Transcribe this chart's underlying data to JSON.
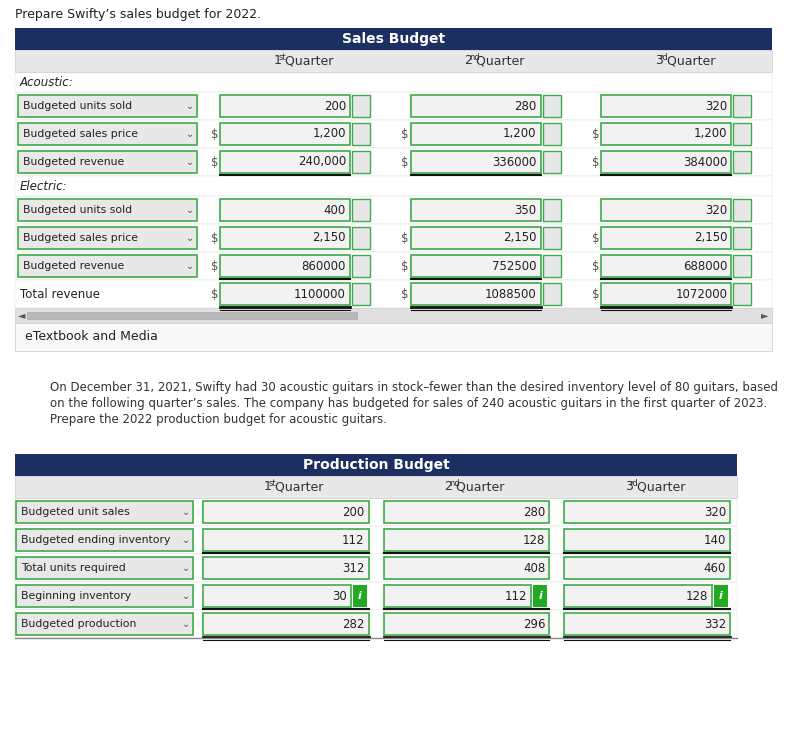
{
  "title_text": "Prepare Swifty’s sales budget for 2022.",
  "sales_budget_title": "Sales Budget",
  "production_budget_title": "Production Budget",
  "header_bg": "#1b3060",
  "header_fg": "#ffffff",
  "subheader_bg": "#e8e8e8",
  "input_bg": "#f2f2f2",
  "input_border": "#3daa4c",
  "label_bg": "#e8e8e8",
  "label_border": "#3daa4c",
  "dark_line_color": "#111111",
  "info_btn_color": "#22aa22",
  "sales_rows": [
    {
      "label": "Acoustic:",
      "type": "section"
    },
    {
      "label": "Budgeted units sold",
      "type": "input",
      "has_dollar": false,
      "values": [
        "200",
        "280",
        "320"
      ],
      "underline": false
    },
    {
      "label": "Budgeted sales price",
      "type": "input",
      "has_dollar": true,
      "values": [
        "1,200",
        "1,200",
        "1,200"
      ],
      "underline": false
    },
    {
      "label": "Budgeted revenue",
      "type": "input",
      "has_dollar": true,
      "values": [
        "240,000",
        "336000",
        "384000"
      ],
      "underline": true
    },
    {
      "label": "Electric:",
      "type": "section"
    },
    {
      "label": "Budgeted units sold",
      "type": "input",
      "has_dollar": false,
      "values": [
        "400",
        "350",
        "320"
      ],
      "underline": false
    },
    {
      "label": "Budgeted sales price",
      "type": "input",
      "has_dollar": true,
      "values": [
        "2,150",
        "2,150",
        "2,150"
      ],
      "underline": false
    },
    {
      "label": "Budgeted revenue",
      "type": "input",
      "has_dollar": true,
      "values": [
        "860000",
        "752500",
        "688000"
      ],
      "underline": true
    },
    {
      "label": "Total revenue",
      "type": "total",
      "has_dollar": true,
      "values": [
        "1100000",
        "1088500",
        "1072000"
      ],
      "underline": true
    }
  ],
  "prod_rows": [
    {
      "label": "Budgeted unit sales",
      "values": [
        "200",
        "280",
        "320"
      ],
      "info_btn": false,
      "underline": false
    },
    {
      "label": "Budgeted ending inventory",
      "values": [
        "112",
        "128",
        "140"
      ],
      "info_btn": false,
      "underline": true
    },
    {
      "label": "Total units required",
      "values": [
        "312",
        "408",
        "460"
      ],
      "info_btn": false,
      "underline": false
    },
    {
      "label": "Beginning inventory",
      "values": [
        "30",
        "112",
        "128"
      ],
      "info_btn": true,
      "underline": true
    },
    {
      "label": "Budgeted production",
      "values": [
        "282",
        "296",
        "332"
      ],
      "info_btn": false,
      "underline": true
    }
  ],
  "desc_text": "On December 31, 2021, Swifty had 30 acoustic guitars in stock–fewer than the desired inventory level of 80 guitars, based\non the following quarter’s sales. The company has budgeted for sales of 240 acoustic guitars in the first quarter of 2023.\nPrepare the 2022 production budget for acoustic guitars."
}
